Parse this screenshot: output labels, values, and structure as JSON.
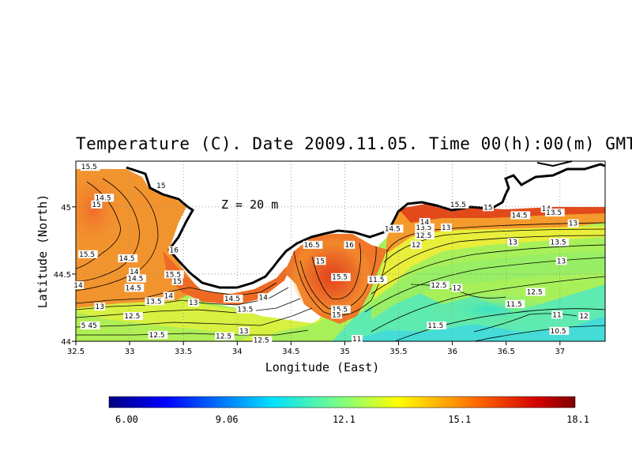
{
  "title": "Temperature (C). Date 2009.11.05. Time 00(h):00(m) GMT",
  "depth_label": "Z = 20 m",
  "xlabel": "Longitude (East)",
  "ylabel": "Latitude (North)",
  "x_ticks": [
    "32.5",
    "33",
    "33.5",
    "34",
    "34.5",
    "35",
    "35.5",
    "36",
    "36.5",
    "37"
  ],
  "y_ticks": [
    "44",
    "44.5",
    "45"
  ],
  "colorbar": {
    "labels": [
      "6.00",
      "9.06",
      "12.1",
      "15.1",
      "18.1"
    ],
    "min": 6.0,
    "max": 18.1
  },
  "contour_labels": [
    {
      "text": "15.5",
      "lon": 32.55,
      "lat": 45.28
    },
    {
      "text": "14.5",
      "lon": 32.68,
      "lat": 45.05
    },
    {
      "text": "15",
      "lon": 32.65,
      "lat": 45.0
    },
    {
      "text": "15",
      "lon": 33.25,
      "lat": 45.14
    },
    {
      "text": "15.5",
      "lon": 32.53,
      "lat": 44.63
    },
    {
      "text": "14.5",
      "lon": 32.9,
      "lat": 44.6
    },
    {
      "text": "14",
      "lon": 33.0,
      "lat": 44.5
    },
    {
      "text": "14.5",
      "lon": 32.98,
      "lat": 44.45
    },
    {
      "text": "14.5",
      "lon": 32.96,
      "lat": 44.38
    },
    {
      "text": "16",
      "lon": 33.37,
      "lat": 44.66
    },
    {
      "text": "15.5",
      "lon": 33.33,
      "lat": 44.48
    },
    {
      "text": "15",
      "lon": 33.4,
      "lat": 44.43
    },
    {
      "text": "14",
      "lon": 32.48,
      "lat": 44.4
    },
    {
      "text": "13.5",
      "lon": 33.15,
      "lat": 44.28
    },
    {
      "text": "13",
      "lon": 32.68,
      "lat": 44.24
    },
    {
      "text": "14",
      "lon": 33.32,
      "lat": 44.32
    },
    {
      "text": "12.5",
      "lon": 32.95,
      "lat": 44.17
    },
    {
      "text": "5 45",
      "lon": 32.55,
      "lat": 44.1
    },
    {
      "text": "13",
      "lon": 33.55,
      "lat": 44.27
    },
    {
      "text": "12.5",
      "lon": 33.18,
      "lat": 44.03
    },
    {
      "text": "12.5",
      "lon": 33.8,
      "lat": 44.02
    },
    {
      "text": "14.5",
      "lon": 33.88,
      "lat": 44.3
    },
    {
      "text": "13.5",
      "lon": 34.0,
      "lat": 44.22
    },
    {
      "text": "14",
      "lon": 34.2,
      "lat": 44.31
    },
    {
      "text": "13",
      "lon": 34.02,
      "lat": 44.06
    },
    {
      "text": "12.5",
      "lon": 34.15,
      "lat": 43.99
    },
    {
      "text": "15",
      "lon": 34.73,
      "lat": 44.58
    },
    {
      "text": "16.5",
      "lon": 34.62,
      "lat": 44.7
    },
    {
      "text": "16",
      "lon": 35.0,
      "lat": 44.7
    },
    {
      "text": "15.5",
      "lon": 34.88,
      "lat": 44.46
    },
    {
      "text": "15.5",
      "lon": 34.88,
      "lat": 44.22
    },
    {
      "text": "15",
      "lon": 34.88,
      "lat": 44.18
    },
    {
      "text": "11.5",
      "lon": 35.22,
      "lat": 44.44
    },
    {
      "text": "11",
      "lon": 35.07,
      "lat": 44.0
    },
    {
      "text": "14.5",
      "lon": 35.37,
      "lat": 44.82
    },
    {
      "text": "13.5",
      "lon": 35.66,
      "lat": 44.83
    },
    {
      "text": "14",
      "lon": 35.7,
      "lat": 44.87
    },
    {
      "text": "13",
      "lon": 35.9,
      "lat": 44.83
    },
    {
      "text": "12.5",
      "lon": 35.66,
      "lat": 44.77
    },
    {
      "text": "12",
      "lon": 35.62,
      "lat": 44.7
    },
    {
      "text": "15.5",
      "lon": 35.98,
      "lat": 45.0
    },
    {
      "text": "15",
      "lon": 36.29,
      "lat": 44.98
    },
    {
      "text": "14.5",
      "lon": 36.55,
      "lat": 44.92
    },
    {
      "text": "14",
      "lon": 36.83,
      "lat": 44.97
    },
    {
      "text": "13.5",
      "lon": 36.87,
      "lat": 44.94
    },
    {
      "text": "13",
      "lon": 37.08,
      "lat": 44.86
    },
    {
      "text": "13",
      "lon": 36.52,
      "lat": 44.72
    },
    {
      "text": "13.5",
      "lon": 36.91,
      "lat": 44.72
    },
    {
      "text": "13",
      "lon": 36.97,
      "lat": 44.58
    },
    {
      "text": "12.5",
      "lon": 35.8,
      "lat": 44.4
    },
    {
      "text": "12",
      "lon": 36.0,
      "lat": 44.38
    },
    {
      "text": "12.5",
      "lon": 36.69,
      "lat": 44.35
    },
    {
      "text": "11.5",
      "lon": 36.5,
      "lat": 44.26
    },
    {
      "text": "11",
      "lon": 36.93,
      "lat": 44.18
    },
    {
      "text": "12",
      "lon": 37.18,
      "lat": 44.17
    },
    {
      "text": "11.5",
      "lon": 35.77,
      "lat": 44.1
    },
    {
      "text": "10.5",
      "lon": 36.91,
      "lat": 44.06
    }
  ]
}
